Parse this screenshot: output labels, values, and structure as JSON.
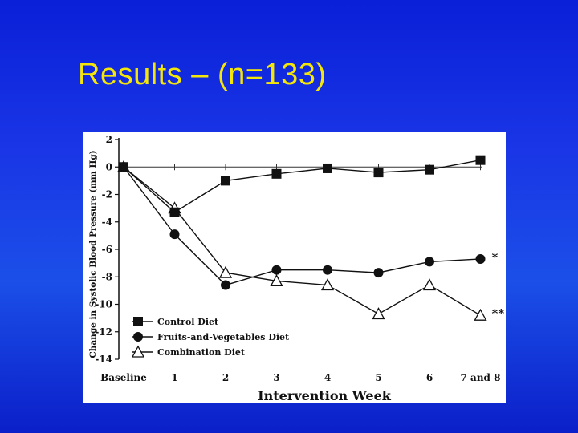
{
  "slide": {
    "title": "Results – (n=133)"
  },
  "chart_data": {
    "type": "line",
    "title": "",
    "xlabel": "Intervention Week",
    "ylabel": "Change in Systolic Blood Pressure (mm Hg)",
    "categories": [
      "Baseline",
      "1",
      "2",
      "3",
      "4",
      "5",
      "6",
      "7 and 8"
    ],
    "ylim": [
      -14,
      2
    ],
    "yticks": [
      2,
      0,
      -2,
      -4,
      -6,
      -8,
      -10,
      -12,
      -14
    ],
    "grid": false,
    "legend_position": "bottom-left",
    "series": [
      {
        "name": "Control Diet",
        "marker": "square-filled",
        "values": [
          0,
          -3.3,
          -1.0,
          -0.5,
          -0.1,
          -0.4,
          -0.2,
          0.5
        ]
      },
      {
        "name": "Fruits-and-Vegetables Diet",
        "marker": "circle-filled",
        "values": [
          0,
          -4.9,
          -8.6,
          -7.5,
          -7.5,
          -7.7,
          -6.9,
          -6.7
        ]
      },
      {
        "name": "Combination Diet",
        "marker": "triangle-open",
        "values": [
          0,
          -3.0,
          -7.7,
          -8.3,
          -8.6,
          -10.7,
          -8.6,
          -10.8
        ]
      }
    ],
    "annotations": [
      {
        "series": 1,
        "text": "*"
      },
      {
        "series": 2,
        "text": "**"
      }
    ]
  }
}
